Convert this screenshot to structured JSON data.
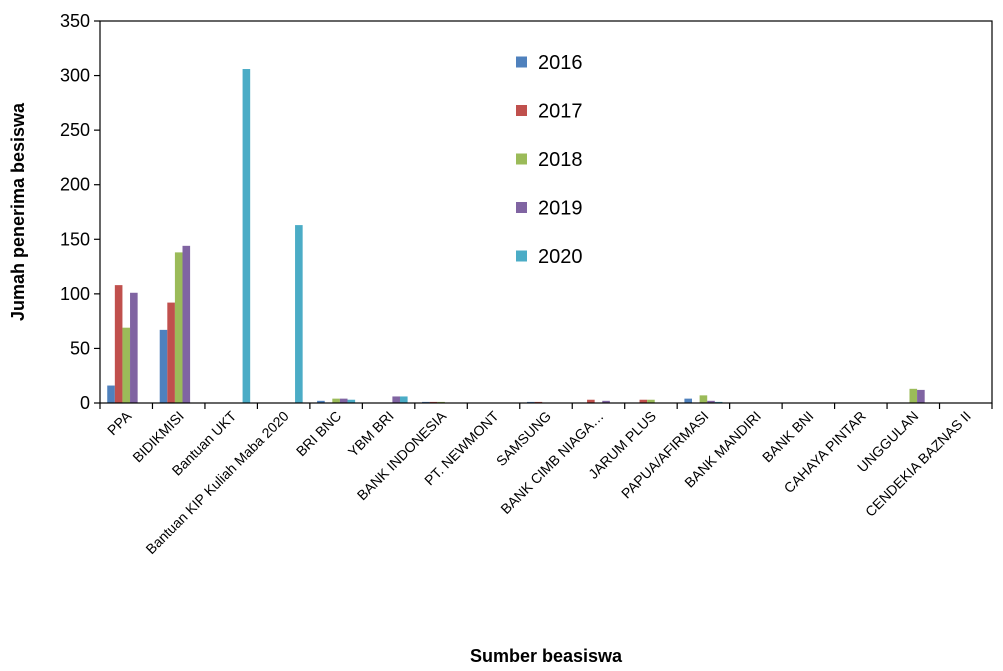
{
  "chart_data": {
    "type": "bar",
    "xlabel": "Sumber beasiswa",
    "ylabel": "Jumah penerima besiswa",
    "ylim": [
      0,
      350
    ],
    "yticks": [
      0,
      50,
      100,
      150,
      200,
      250,
      300,
      350
    ],
    "grid": false,
    "legend_position": "top-right inside plot",
    "categories": [
      "PPA",
      "BIDIKMISI",
      "Bantuan UKT",
      "Bantuan KIP Kuliah Maba 2020",
      "BRI BNC",
      "YBM BRI",
      "BANK INDONESIA",
      "PT. NEWMONT",
      "SAMSUNG",
      "BANK CIMB NIAGA…",
      "JARUM PLUS",
      "PAPUA/AFIRMASI",
      "BANK MANDIRI",
      "BANK BNI",
      "CAHAYA PINTAR",
      "UNGGULAN",
      "CENDEKIA BAZNAS II"
    ],
    "series": [
      {
        "name": "2016",
        "color": "#4F81BD",
        "values": [
          16,
          67,
          0,
          0,
          2,
          0,
          1,
          0,
          1,
          0,
          0,
          4,
          0,
          0,
          0,
          0,
          0
        ]
      },
      {
        "name": "2017",
        "color": "#C0504D",
        "values": [
          108,
          92,
          0,
          0,
          0,
          0,
          1,
          0,
          1,
          3,
          3,
          0,
          0,
          0,
          0,
          0,
          0
        ]
      },
      {
        "name": "2018",
        "color": "#9BBB59",
        "values": [
          69,
          138,
          0,
          0,
          4,
          0,
          1,
          0,
          0,
          0,
          3,
          7,
          0,
          0,
          0,
          13,
          0
        ]
      },
      {
        "name": "2019",
        "color": "#8064A2",
        "values": [
          101,
          144,
          0,
          0,
          4,
          6,
          0,
          0,
          0,
          2,
          0,
          2,
          0,
          0,
          0,
          12,
          0
        ]
      },
      {
        "name": "2020",
        "color": "#4BACC6",
        "values": [
          0,
          0,
          306,
          163,
          3,
          6,
          0,
          0,
          0,
          0,
          0,
          1,
          0,
          0,
          0,
          0,
          0
        ]
      }
    ]
  }
}
